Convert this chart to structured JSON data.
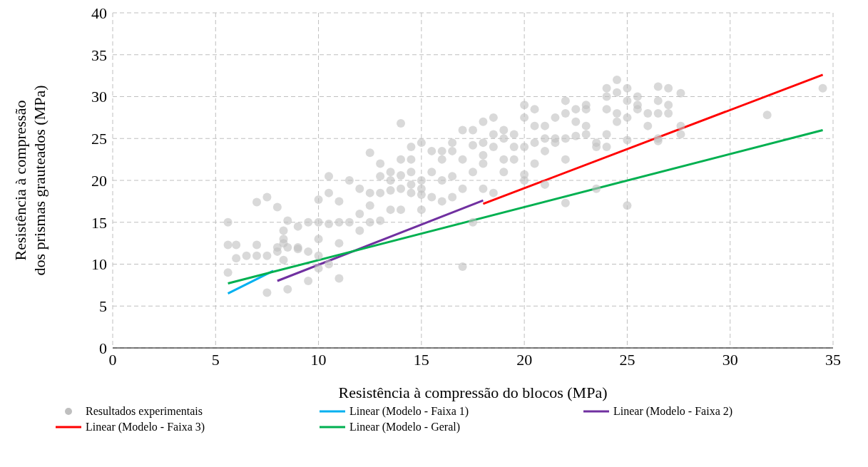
{
  "chart_data": {
    "type": "scatter",
    "xlabel": "Resistência à compressão do blocos (MPa)",
    "ylabel": "Resistência à compressão dos prismas grauteados (MPa)",
    "xlim": [
      0,
      35
    ],
    "xticks": [
      0,
      5,
      10,
      15,
      20,
      25,
      30,
      35
    ],
    "ylim": [
      0,
      40
    ],
    "yticks": [
      0,
      5,
      10,
      15,
      20,
      25,
      30,
      35,
      40
    ],
    "grid": true,
    "legend": "bottom",
    "series": [
      {
        "name": "Resultados experimentais",
        "marker": "circle",
        "color": "#bfbfbf",
        "x": [
          5.6,
          5.6,
          5.6,
          6,
          6,
          6.5,
          7,
          7,
          7,
          7.5,
          7.5,
          7.5,
          8,
          8,
          8,
          8.3,
          8.3,
          8.3,
          8.3,
          8.5,
          8.5,
          8.5,
          9,
          9,
          9,
          9.5,
          9.5,
          9.5,
          10,
          10,
          10,
          10,
          10,
          10.5,
          10.5,
          10.5,
          10.5,
          11,
          11,
          11,
          11,
          11.5,
          11.5,
          12,
          12,
          12,
          12.5,
          12.5,
          12.5,
          12.5,
          13,
          13,
          13,
          13,
          13.5,
          13.5,
          13.5,
          13.5,
          14,
          14,
          14,
          14,
          14,
          14.5,
          14.5,
          14.5,
          14.5,
          14.5,
          15,
          15,
          15,
          15,
          15,
          15.5,
          15.5,
          15.5,
          16,
          16,
          16,
          16,
          16.5,
          16.5,
          16.5,
          16.5,
          17,
          17,
          17,
          17,
          17.5,
          17.5,
          17.5,
          17.5,
          18,
          18,
          18,
          18,
          18,
          18.5,
          18.5,
          18.5,
          18.5,
          19,
          19,
          19,
          19,
          19.5,
          19.5,
          19.5,
          20,
          20,
          20,
          20,
          20,
          20.5,
          20.5,
          20.5,
          20.5,
          21,
          21,
          21,
          21,
          21.5,
          21.5,
          21.5,
          22,
          22,
          22,
          22,
          22,
          22.5,
          22.5,
          22.5,
          23,
          23,
          23,
          23,
          23.5,
          23.5,
          23.5,
          24,
          24,
          24,
          24,
          24,
          24.5,
          24.5,
          24.5,
          24.5,
          25,
          25,
          25,
          25,
          25,
          25.5,
          25.5,
          25.5,
          26,
          26,
          26.5,
          26.5,
          26.5,
          26.5,
          26.5,
          27,
          27,
          27,
          27.6,
          27.6,
          27.6,
          31.8,
          34.5
        ],
        "values": [
          15,
          12.3,
          9,
          12.3,
          10.7,
          11,
          17.4,
          11,
          12.3,
          18,
          11,
          6.6,
          12,
          11.5,
          16.8,
          14,
          12.5,
          10.5,
          13,
          15.2,
          7,
          12,
          11.8,
          14.5,
          12,
          15,
          11.5,
          8,
          17.7,
          13,
          9.5,
          11,
          15,
          20.5,
          18.5,
          14.8,
          10,
          17.5,
          15,
          8.3,
          12.5,
          20,
          15,
          19,
          16,
          14,
          23.3,
          18.5,
          15,
          17,
          22,
          20.5,
          18.5,
          15.2,
          21,
          20,
          16.5,
          18.8,
          26.8,
          20.6,
          19,
          22.5,
          16.5,
          24,
          19.5,
          18.5,
          21,
          22.5,
          24.5,
          20,
          18.3,
          19,
          16.5,
          23.5,
          21,
          18,
          23.5,
          22.5,
          17.5,
          20,
          24.5,
          20.5,
          18,
          23.5,
          22.5,
          19,
          9.7,
          26,
          24.2,
          26,
          15,
          21,
          23,
          24.5,
          22,
          19,
          27,
          27.5,
          25.5,
          24,
          18.5,
          26,
          25,
          22.5,
          21,
          24,
          25.5,
          22.5,
          29,
          27.5,
          24,
          20,
          20.7,
          28.5,
          24.5,
          22,
          26.5,
          26.5,
          25,
          23.5,
          19.5,
          27.5,
          25,
          24.5,
          29.5,
          28,
          25,
          17.3,
          22.5,
          28.5,
          25.3,
          27,
          28.5,
          29,
          26.5,
          25.5,
          24.5,
          24,
          19,
          31,
          30,
          28.5,
          25.5,
          24,
          32,
          30.5,
          27,
          28,
          31,
          29.5,
          27.5,
          17,
          24.8,
          30,
          28.5,
          29,
          28,
          26.5,
          31.2,
          29.5,
          28,
          25,
          24.7,
          31,
          29,
          28,
          30.4,
          26.5,
          25.5,
          27.8,
          31
        ]
      },
      {
        "name": "Linear (Modelo - Faixa 1)",
        "type": "line",
        "color": "#00b0f0",
        "marker": "none",
        "x": [
          5.6,
          7.8
        ],
        "values": [
          6.5,
          9.2
        ]
      },
      {
        "name": "Linear (Modelo - Faixa 2)",
        "type": "line",
        "color": "#7030a0",
        "marker": "none",
        "x": [
          8.0,
          18.0
        ],
        "values": [
          8.0,
          17.6
        ]
      },
      {
        "name": "Linear (Modelo - Faixa 3)",
        "type": "line",
        "color": "#ff0000",
        "marker": "none",
        "x": [
          18.0,
          34.5
        ],
        "values": [
          17.2,
          32.6
        ]
      },
      {
        "name": "Linear (Modelo - Geral)",
        "type": "line",
        "color": "#00b050",
        "marker": "none",
        "x": [
          5.6,
          34.5
        ],
        "values": [
          7.7,
          26.0
        ]
      }
    ]
  }
}
